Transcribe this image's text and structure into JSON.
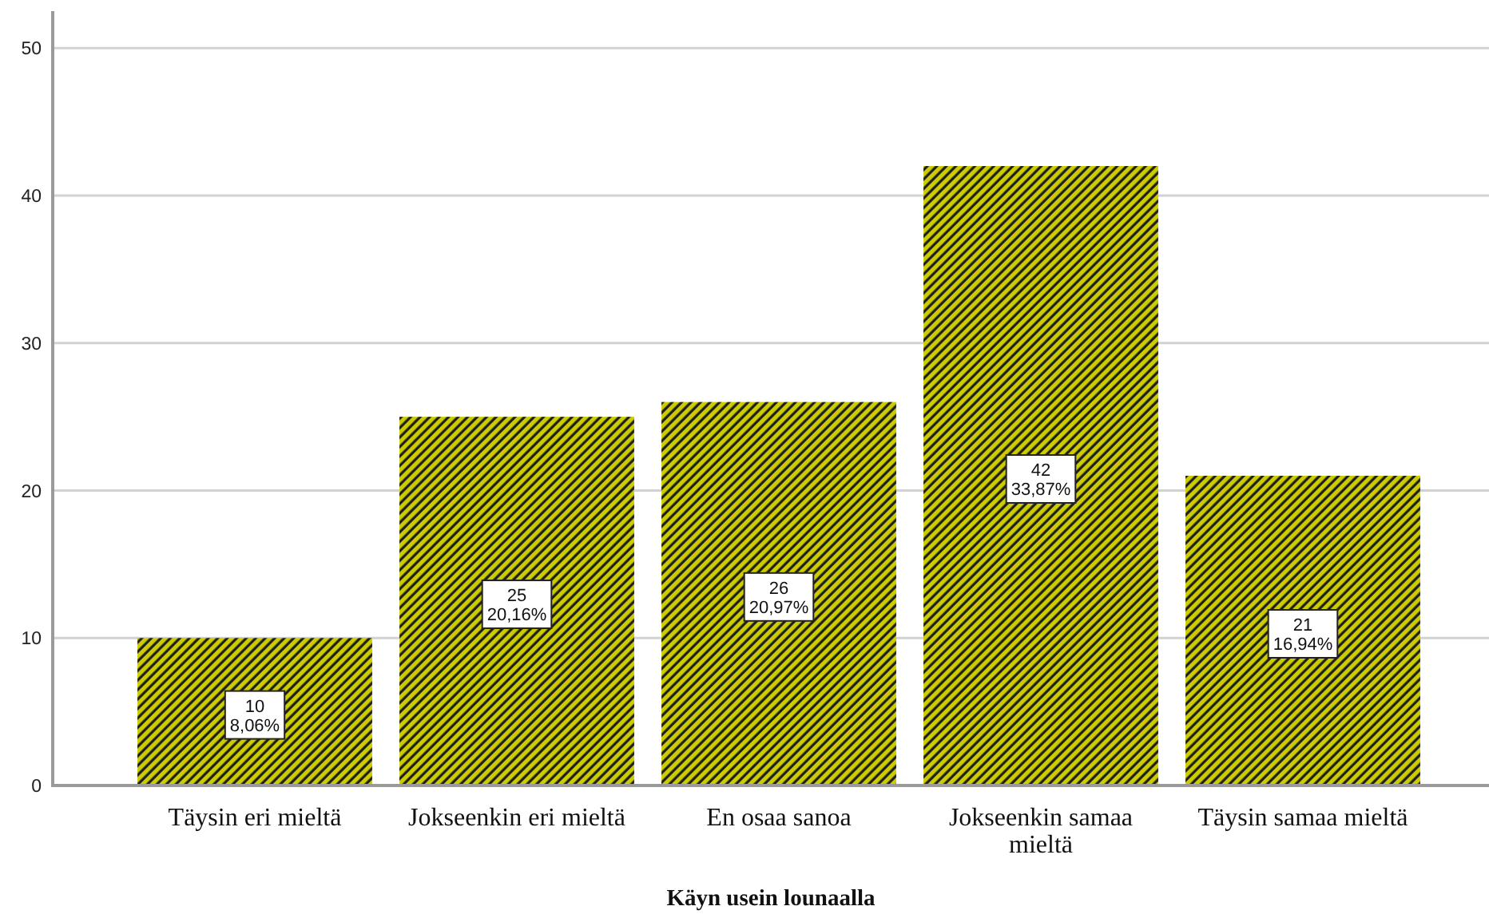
{
  "chart_data": {
    "type": "bar",
    "xlabel": "Käyn usein lounaalla",
    "categories": [
      "Täysin eri mieltä",
      "Jokseenkin eri mieltä",
      "En osaa sanoa",
      "Jokseenkin samaa mieltä",
      "Täysin samaa mieltä"
    ],
    "values": [
      10,
      25,
      26,
      42,
      21
    ],
    "value_labels": [
      "10\n8,06%",
      "25\n20,16%",
      "26\n20,97%",
      "42\n33,87%",
      "21\n16,94%"
    ],
    "color": "#cccc00",
    "ylim": [
      0,
      52.5
    ],
    "yticks": [
      0,
      10,
      20,
      30,
      40,
      50
    ],
    "grid": "y"
  }
}
